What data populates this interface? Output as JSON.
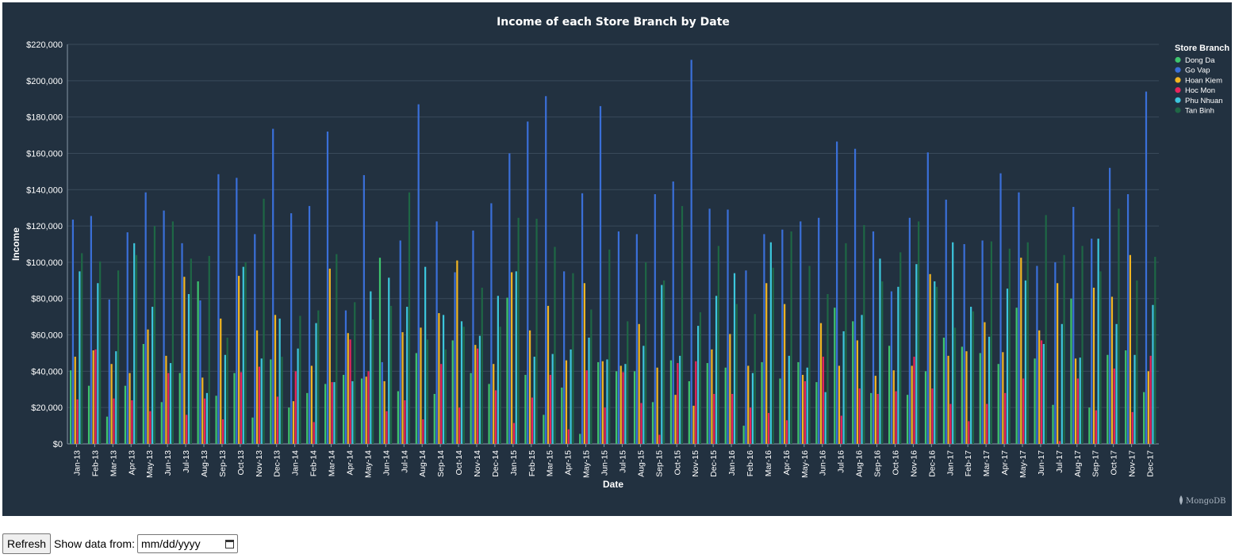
{
  "chart_data": {
    "type": "bar",
    "title": "Income of each Store Branch by Date",
    "xlabel": "Date",
    "ylabel": "Income",
    "ylim": [
      0,
      220000
    ],
    "yticks": [
      "$0",
      "$20,000",
      "$40,000",
      "$60,000",
      "$80,000",
      "$100,000",
      "$120,000",
      "$140,000",
      "$160,000",
      "$180,000",
      "$200,000",
      "$220,000"
    ],
    "grid": true,
    "legend_title": "Store Branch",
    "legend_position": "right",
    "categories": [
      "Jan-13",
      "Feb-13",
      "Mar-13",
      "Apr-13",
      "May-13",
      "Jun-13",
      "Jul-13",
      "Aug-13",
      "Sep-13",
      "Oct-13",
      "Nov-13",
      "Dec-13",
      "Jan-14",
      "Feb-14",
      "Mar-14",
      "Apr-14",
      "May-14",
      "Jun-14",
      "Jul-14",
      "Aug-14",
      "Sep-14",
      "Oct-14",
      "Nov-14",
      "Dec-14",
      "Jan-15",
      "Feb-15",
      "Mar-15",
      "Apr-15",
      "May-15",
      "Jun-15",
      "Jul-15",
      "Aug-15",
      "Sep-15",
      "Oct-15",
      "Nov-15",
      "Dec-15",
      "Jan-16",
      "Feb-16",
      "Mar-16",
      "Apr-16",
      "May-16",
      "Jun-16",
      "Jul-16",
      "Aug-16",
      "Sep-16",
      "Oct-16",
      "Nov-16",
      "Dec-16",
      "Jan-17",
      "Feb-17",
      "Mar-17",
      "Apr-17",
      "May-17",
      "Jun-17",
      "Jul-17",
      "Aug-17",
      "Sep-17",
      "Oct-17",
      "Nov-17",
      "Dec-17"
    ],
    "series": [
      {
        "name": "Dong Da",
        "color": "#3ec46d",
        "values": [
          40500,
          32000,
          15000,
          32000,
          55000,
          23000,
          39000,
          89500,
          26500,
          39000,
          14500,
          46500,
          20000,
          28000,
          33000,
          38000,
          36000,
          102500,
          29000,
          50000,
          27500,
          57000,
          39000,
          33000,
          80500,
          38000,
          16000,
          31000,
          5500,
          45000,
          40000,
          40000,
          23000,
          46000,
          34500,
          44500,
          42000,
          10000,
          45000,
          36000,
          45000,
          34000,
          75000,
          67500,
          28000,
          54000,
          27000,
          40000,
          58500,
          53500,
          50000,
          44000,
          75000,
          47000,
          21500,
          80000,
          20000,
          49000,
          51500,
          28500
        ]
      },
      {
        "name": "Go Vap",
        "color": "#3a6fd8",
        "values": [
          123500,
          125500,
          79500,
          116500,
          138500,
          128500,
          110500,
          79000,
          148500,
          146500,
          115500,
          173500,
          127000,
          131000,
          172000,
          73500,
          148000,
          45000,
          112000,
          187000,
          122500,
          94500,
          117500,
          132500,
          160000,
          177500,
          191500,
          95000,
          138000,
          186000,
          117000,
          115500,
          137500,
          144500,
          211500,
          129500,
          129000,
          95500,
          115500,
          118000,
          122500,
          124500,
          166500,
          162500,
          117000,
          84000,
          124500,
          160500,
          134500,
          110000,
          112000,
          149000,
          138500,
          98000,
          100000,
          130500,
          113000,
          152000,
          137500,
          194000
        ]
      },
      {
        "name": "Hoan Kiem",
        "color": "#f1b522",
        "values": [
          48000,
          51500,
          44000,
          39000,
          63000,
          48500,
          92000,
          36500,
          69000,
          92500,
          62500,
          71000,
          23500,
          43000,
          96500,
          61000,
          37000,
          34500,
          61500,
          64000,
          72000,
          101000,
          54500,
          44000,
          94500,
          62500,
          76000,
          46000,
          88500,
          45500,
          43000,
          66000,
          42000,
          27000,
          21000,
          52000,
          60500,
          43000,
          88500,
          77000,
          38000,
          66500,
          43000,
          57000,
          37500,
          40500,
          43000,
          93500,
          48500,
          51000,
          67000,
          50500,
          102500,
          62500,
          88500,
          47000,
          86000,
          81000,
          104000,
          40000
        ]
      },
      {
        "name": "Hoc Mon",
        "color": "#e8245c",
        "values": [
          24500,
          52000,
          25000,
          24000,
          18000,
          39000,
          16000,
          25000,
          13500,
          39500,
          42500,
          26000,
          40000,
          12000,
          34000,
          57500,
          40000,
          18000,
          24000,
          13500,
          44000,
          20000,
          52500,
          29500,
          11500,
          25500,
          38000,
          8000,
          40500,
          20000,
          39500,
          22500,
          5000,
          44500,
          45500,
          27500,
          27500,
          20000,
          17000,
          13000,
          34500,
          48000,
          15500,
          30500,
          27500,
          29000,
          48000,
          30500,
          22000,
          12500,
          22000,
          28000,
          36000,
          57000,
          1500,
          36000,
          18500,
          41500,
          17500,
          48500
        ]
      },
      {
        "name": "Phu Nhuan",
        "color": "#3cc6dc",
        "values": [
          95000,
          88500,
          51000,
          110500,
          75500,
          44500,
          82500,
          28000,
          49000,
          97500,
          47000,
          69000,
          52500,
          66500,
          34000,
          34500,
          84000,
          91500,
          75500,
          97500,
          71000,
          67500,
          59500,
          81500,
          95000,
          48000,
          49500,
          52000,
          58500,
          46500,
          44000,
          54000,
          87500,
          48500,
          65000,
          81500,
          94000,
          39000,
          111000,
          48500,
          42000,
          28500,
          62000,
          71000,
          102000,
          86500,
          99000,
          89500,
          111000,
          75500,
          59000,
          85500,
          90000,
          55000,
          66000,
          47500,
          113000,
          66000,
          49000,
          76500
        ]
      },
      {
        "name": "Tan Binh",
        "color": "#1e6745",
        "values": [
          105000,
          100500,
          95500,
          104000,
          120000,
          122500,
          102000,
          103500,
          58500,
          100000,
          135000,
          48000,
          70500,
          73500,
          104500,
          78000,
          68500,
          76000,
          138500,
          57500,
          52000,
          64500,
          86000,
          64500,
          124500,
          124000,
          108500,
          94000,
          74000,
          107000,
          67500,
          100000,
          90000,
          131000,
          72500,
          109000,
          77000,
          71500,
          97000,
          117000,
          98000,
          82500,
          110500,
          120500,
          89500,
          105500,
          122500,
          86500,
          64000,
          73000,
          111500,
          107500,
          111000,
          126000,
          104000,
          109000,
          95000,
          129500,
          90000,
          103000
        ]
      }
    ]
  },
  "watermark": "MongoDB",
  "controls": {
    "refresh_label": "Refresh",
    "show_label": "Show data from:",
    "date_placeholder": "mm/dd/yyyy"
  }
}
